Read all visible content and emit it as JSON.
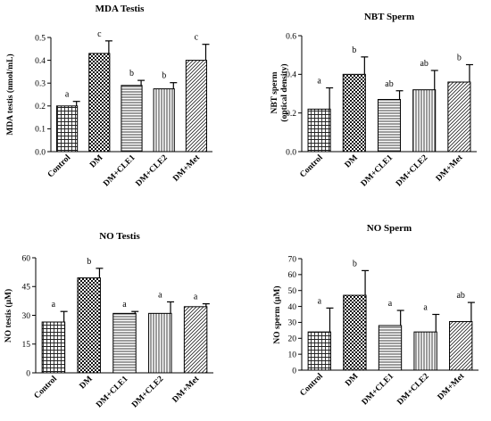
{
  "chart_data": [
    {
      "type": "bar",
      "title": "MDA Testis",
      "ylabel_lines": [
        "MDA testis (nmol/mL)"
      ],
      "categories": [
        "Control",
        "DM",
        "DM+CLE1",
        "DM+CLE2",
        "DM+Met"
      ],
      "values": [
        0.2,
        0.43,
        0.29,
        0.275,
        0.4
      ],
      "errors": [
        0.02,
        0.055,
        0.022,
        0.027,
        0.07
      ],
      "significance": [
        "a",
        "c",
        "b",
        "b",
        "c"
      ],
      "patterns": [
        "grid",
        "checker",
        "hlines",
        "vlines",
        "diag"
      ],
      "ylim": [
        0,
        0.5
      ],
      "yticks": [
        0.0,
        0.1,
        0.2,
        0.3,
        0.4,
        0.5
      ],
      "ytick_labels": [
        "0.0",
        "0.1",
        "0.2",
        "0.3",
        "0.4",
        "0.5"
      ]
    },
    {
      "type": "bar",
      "title": "NBT Sperm",
      "ylabel_lines": [
        "NBT sperm",
        "(optical density)"
      ],
      "categories": [
        "Control",
        "DM",
        "DM+CLE1",
        "DM+CLE2",
        "DM+Met"
      ],
      "values": [
        0.22,
        0.4,
        0.27,
        0.32,
        0.36
      ],
      "errors": [
        0.11,
        0.09,
        0.045,
        0.1,
        0.09
      ],
      "significance": [
        "a",
        "b",
        "ab",
        "ab",
        "b"
      ],
      "patterns": [
        "grid",
        "checker",
        "hlines",
        "vlines",
        "diag"
      ],
      "ylim": [
        0,
        0.6
      ],
      "yticks": [
        0.0,
        0.2,
        0.4,
        0.6
      ],
      "ytick_labels": [
        "0.0",
        "0.2",
        "0.4",
        "0.6"
      ]
    },
    {
      "type": "bar",
      "title": "NO  Testis",
      "ylabel_lines": [
        "NO testis (µM)"
      ],
      "categories": [
        "Control",
        "DM",
        "DM+CLE1",
        "DM+CLE2",
        "DM+Met"
      ],
      "values": [
        26.5,
        49.5,
        31.0,
        31.0,
        34.5
      ],
      "errors": [
        5.5,
        5.0,
        1.0,
        6.0,
        1.5
      ],
      "significance": [
        "a",
        "b",
        "a",
        "a",
        "a"
      ],
      "patterns": [
        "grid",
        "checker",
        "hlines",
        "vlines",
        "diag"
      ],
      "ylim": [
        0,
        60
      ],
      "yticks": [
        0,
        15,
        30,
        45,
        60
      ],
      "ytick_labels": [
        "0",
        "15",
        "30",
        "45",
        "60"
      ]
    },
    {
      "type": "bar",
      "title": "NO  Sperm",
      "ylabel_lines": [
        "NO sperm (µM)"
      ],
      "categories": [
        "Control",
        "DM",
        "DM+CLE1",
        "DM+CLE2",
        "DM+Met"
      ],
      "values": [
        24,
        47,
        28,
        24,
        30.5
      ],
      "errors": [
        15,
        15.5,
        9.5,
        11,
        12
      ],
      "significance": [
        "a",
        "b",
        "a",
        "a",
        "ab"
      ],
      "patterns": [
        "grid",
        "checker",
        "hlines",
        "vlines",
        "diag"
      ],
      "ylim": [
        0,
        70
      ],
      "yticks": [
        0,
        10,
        20,
        30,
        40,
        50,
        60,
        70
      ],
      "ytick_labels": [
        "0",
        "10",
        "20",
        "30",
        "40",
        "50",
        "60",
        "70"
      ]
    }
  ]
}
